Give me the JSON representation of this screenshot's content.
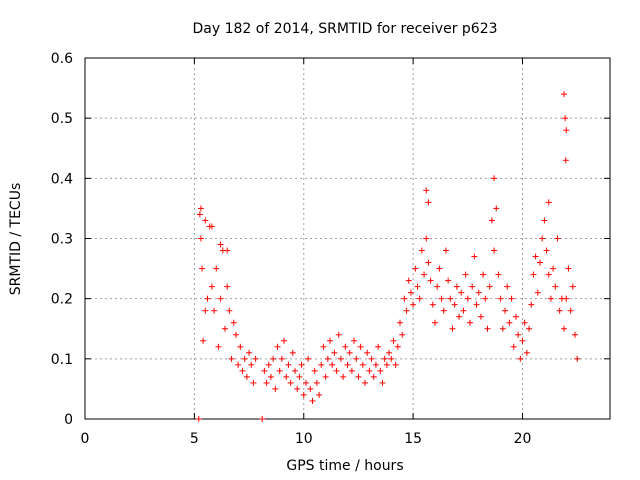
{
  "chart_data": {
    "type": "scatter",
    "title": "Day 182 of 2014, SRMTID for receiver p623",
    "xlabel": "GPS time / hours",
    "ylabel": "SRMTID / TECUs",
    "xlim": [
      0,
      24
    ],
    "ylim": [
      0,
      0.6
    ],
    "xticks": [
      0,
      5,
      10,
      15,
      20
    ],
    "yticks": [
      0,
      0.1,
      0.2,
      0.3,
      0.4,
      0.5,
      0.6
    ],
    "xtick_labels": [
      "0",
      "5",
      "10",
      "15",
      "20"
    ],
    "ytick_labels": [
      "0",
      "0.1",
      "0.2",
      "0.3",
      "0.4",
      "0.5",
      "0.6"
    ],
    "grid": true,
    "marker": "+",
    "marker_color": "#ff0000",
    "series": [
      {
        "name": "SRMTID",
        "x": [
          5.2,
          8.1,
          5.25,
          5.3,
          5.35,
          5.4,
          5.5,
          5.6,
          5.7,
          5.8,
          5.9,
          6.0,
          6.1,
          6.2,
          6.3,
          6.4,
          6.5,
          6.6,
          6.7,
          6.8,
          6.9,
          7.0,
          7.1,
          7.2,
          7.3,
          7.4,
          7.5,
          7.6,
          7.7,
          7.8,
          8.2,
          8.3,
          8.4,
          8.5,
          8.6,
          8.7,
          8.8,
          8.9,
          9.0,
          9.1,
          9.2,
          9.3,
          9.4,
          9.5,
          9.6,
          9.7,
          9.8,
          9.9,
          10.0,
          10.1,
          10.2,
          10.3,
          10.4,
          10.5,
          10.6,
          10.7,
          10.8,
          10.9,
          11.0,
          11.1,
          11.2,
          11.3,
          11.4,
          11.5,
          11.6,
          11.7,
          11.8,
          11.9,
          12.0,
          12.1,
          12.2,
          12.3,
          12.4,
          12.5,
          12.6,
          12.7,
          12.8,
          12.9,
          13.0,
          13.1,
          13.2,
          13.3,
          13.4,
          13.5,
          13.6,
          13.7,
          13.8,
          13.9,
          14.0,
          14.1,
          14.2,
          14.3,
          14.4,
          14.5,
          14.6,
          14.7,
          14.8,
          14.9,
          15.0,
          15.1,
          15.2,
          15.3,
          15.4,
          15.5,
          15.6,
          15.7,
          15.8,
          15.9,
          16.0,
          16.1,
          16.2,
          16.3,
          16.4,
          16.5,
          16.6,
          16.7,
          16.8,
          16.9,
          17.0,
          17.1,
          17.2,
          17.3,
          17.4,
          17.5,
          17.6,
          17.7,
          17.8,
          17.9,
          18.0,
          18.1,
          18.2,
          18.3,
          18.4,
          18.5,
          18.6,
          18.7,
          18.8,
          18.9,
          19.0,
          19.1,
          19.2,
          19.3,
          19.4,
          19.5,
          19.6,
          19.7,
          19.8,
          19.9,
          20.0,
          20.1,
          20.2,
          20.3,
          20.4,
          20.5,
          20.6,
          20.7,
          20.8,
          20.9,
          21.0,
          21.1,
          21.2,
          21.3,
          21.4,
          21.5,
          21.6,
          21.7,
          21.8,
          21.9,
          22.0,
          22.1,
          22.2,
          22.3,
          22.4,
          22.5,
          5.3,
          5.5,
          5.8,
          6.2,
          6.5,
          15.6,
          15.7,
          18.7,
          21.2,
          21.9,
          21.95,
          22.0,
          21.98
        ],
        "y": [
          0.0,
          0.0,
          0.34,
          0.3,
          0.25,
          0.13,
          0.18,
          0.2,
          0.32,
          0.22,
          0.18,
          0.25,
          0.12,
          0.2,
          0.28,
          0.15,
          0.22,
          0.18,
          0.1,
          0.16,
          0.14,
          0.09,
          0.12,
          0.08,
          0.1,
          0.07,
          0.11,
          0.09,
          0.06,
          0.1,
          0.08,
          0.06,
          0.09,
          0.07,
          0.1,
          0.05,
          0.12,
          0.08,
          0.1,
          0.13,
          0.07,
          0.09,
          0.06,
          0.11,
          0.08,
          0.05,
          0.07,
          0.09,
          0.04,
          0.06,
          0.1,
          0.05,
          0.03,
          0.08,
          0.06,
          0.04,
          0.09,
          0.12,
          0.07,
          0.1,
          0.13,
          0.09,
          0.11,
          0.08,
          0.14,
          0.1,
          0.07,
          0.12,
          0.09,
          0.11,
          0.08,
          0.13,
          0.1,
          0.07,
          0.12,
          0.09,
          0.06,
          0.11,
          0.08,
          0.1,
          0.07,
          0.09,
          0.12,
          0.08,
          0.06,
          0.1,
          0.09,
          0.11,
          0.1,
          0.13,
          0.09,
          0.12,
          0.16,
          0.14,
          0.2,
          0.18,
          0.23,
          0.21,
          0.19,
          0.25,
          0.22,
          0.2,
          0.28,
          0.24,
          0.3,
          0.26,
          0.23,
          0.19,
          0.16,
          0.22,
          0.25,
          0.2,
          0.18,
          0.28,
          0.23,
          0.2,
          0.15,
          0.19,
          0.22,
          0.17,
          0.21,
          0.18,
          0.24,
          0.2,
          0.16,
          0.22,
          0.27,
          0.19,
          0.21,
          0.17,
          0.24,
          0.2,
          0.15,
          0.22,
          0.33,
          0.28,
          0.35,
          0.24,
          0.2,
          0.15,
          0.18,
          0.22,
          0.16,
          0.2,
          0.12,
          0.17,
          0.14,
          0.1,
          0.13,
          0.16,
          0.11,
          0.15,
          0.19,
          0.24,
          0.27,
          0.21,
          0.26,
          0.3,
          0.33,
          0.28,
          0.24,
          0.2,
          0.25,
          0.22,
          0.3,
          0.18,
          0.2,
          0.15,
          0.2,
          0.25,
          0.18,
          0.22,
          0.14,
          0.1,
          0.35,
          0.33,
          0.32,
          0.29,
          0.28,
          0.38,
          0.36,
          0.4,
          0.36,
          0.54,
          0.5,
          0.48,
          0.43
        ]
      }
    ]
  }
}
